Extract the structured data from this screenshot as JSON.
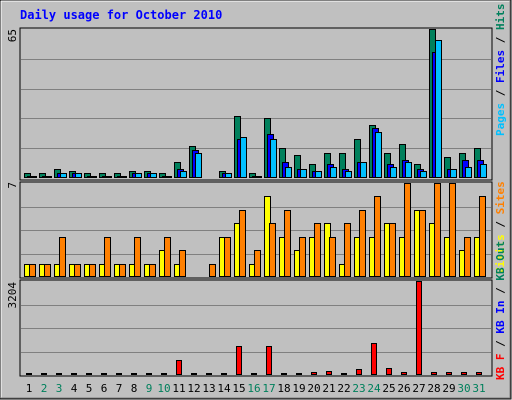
{
  "title": "Daily usage for October 2010",
  "colors": {
    "background": "#c0c0c0",
    "title": "#0000ff",
    "hits": "#00805c",
    "files": "#0000ff",
    "pages": "#00c0ff",
    "visits": "#ffff00",
    "sites": "#ff8000",
    "kb_in": "#0000ff",
    "kb_out": "#00805c",
    "kb_f": "#ff0000",
    "weekend_day": "#00805c",
    "weekday": "#000000"
  },
  "chart_data": {
    "type": "bar",
    "categories": [
      "1",
      "2",
      "3",
      "4",
      "5",
      "6",
      "7",
      "8",
      "9",
      "10",
      "11",
      "12",
      "13",
      "14",
      "15",
      "16",
      "17",
      "18",
      "19",
      "20",
      "21",
      "22",
      "23",
      "24",
      "25",
      "26",
      "27",
      "28",
      "29",
      "30",
      "31"
    ],
    "weekend_days": [
      2,
      3,
      9,
      10,
      16,
      17,
      23,
      24,
      30,
      31
    ],
    "panels": [
      {
        "id": "hits",
        "ymax_label": "65",
        "ymax": 65,
        "axis_label": [
          {
            "text": "Pages",
            "color": "#00c0ff"
          },
          {
            "text": " / ",
            "color": "#000000"
          },
          {
            "text": "Files",
            "color": "#0000ff"
          },
          {
            "text": " / ",
            "color": "#000000"
          },
          {
            "text": "Hits",
            "color": "#00805c"
          }
        ],
        "series": [
          {
            "name": "Hits",
            "color": "#00805c",
            "values": [
              2,
              2,
              4,
              3,
              2,
              2,
              2,
              3,
              3,
              2,
              7,
              14,
              0,
              3,
              27,
              2,
              26,
              13,
              10,
              6,
              11,
              11,
              17,
              23,
              11,
              15,
              6,
              65,
              9,
              11,
              13
            ]
          },
          {
            "name": "Files",
            "color": "#0000ff",
            "values": [
              1,
              1,
              2,
              2,
              1,
              1,
              1,
              2,
              2,
              1,
              4,
              12,
              0,
              2,
              17,
              1,
              19,
              7,
              4,
              3,
              6,
              4,
              7,
              22,
              6,
              8,
              4,
              55,
              4,
              8,
              8
            ]
          },
          {
            "name": "Pages",
            "color": "#00c0ff",
            "values": [
              1,
              1,
              2,
              2,
              1,
              1,
              1,
              2,
              2,
              1,
              3,
              11,
              0,
              2,
              18,
              1,
              17,
              5,
              4,
              3,
              5,
              3,
              7,
              20,
              5,
              7,
              3,
              60,
              4,
              5,
              6
            ]
          }
        ]
      },
      {
        "id": "visits",
        "ymax_label": "7",
        "ymax": 7,
        "axis_label": [
          {
            "text": "Visits",
            "color": "#ffff00"
          },
          {
            "text": " / ",
            "color": "#000000"
          },
          {
            "text": "Sites",
            "color": "#ff8000"
          }
        ],
        "series": [
          {
            "name": "Visits",
            "color": "#ffff00",
            "values": [
              1,
              1,
              1,
              1,
              1,
              1,
              1,
              1,
              1,
              2,
              1,
              0,
              0,
              3,
              4,
              1,
              6,
              3,
              2,
              3,
              4,
              1,
              3,
              3,
              4,
              3,
              5,
              4,
              3,
              2,
              3
            ]
          },
          {
            "name": "Sites",
            "color": "#ff8000",
            "values": [
              1,
              1,
              3,
              1,
              1,
              3,
              1,
              3,
              1,
              3,
              2,
              0,
              1,
              3,
              5,
              2,
              4,
              5,
              3,
              4,
              3,
              4,
              5,
              6,
              4,
              7,
              5,
              7,
              7,
              3,
              6
            ]
          }
        ]
      },
      {
        "id": "kbytes",
        "ymax_label": "3204",
        "ymax": 3204,
        "axis_label": [
          {
            "text": "KB F",
            "color": "#ff0000"
          },
          {
            "text": " / ",
            "color": "#000000"
          },
          {
            "text": "KB In",
            "color": "#0000ff"
          },
          {
            "text": " / ",
            "color": "#000000"
          },
          {
            "text": "KB Out",
            "color": "#00805c"
          }
        ],
        "series": [
          {
            "name": "KB F",
            "color": "#ff0000",
            "values": [
              30,
              30,
              30,
              30,
              30,
              30,
              30,
              30,
              30,
              30,
              520,
              30,
              30,
              30,
              980,
              30,
              1000,
              30,
              60,
              90,
              150,
              60,
              210,
              1100,
              250,
              100,
              3204,
              100,
              110,
              100,
              110
            ]
          }
        ]
      }
    ]
  }
}
